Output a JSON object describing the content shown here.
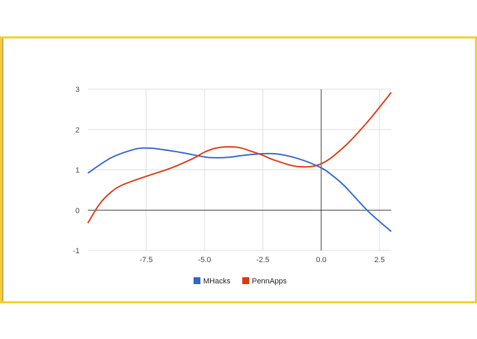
{
  "chart_data": {
    "type": "line",
    "title": "",
    "xlabel": "",
    "ylabel": "",
    "xlim": [
      -10,
      3
    ],
    "ylim": [
      -1,
      3
    ],
    "x_ticks": [
      -7.5,
      -5.0,
      -2.5,
      0.0,
      2.5
    ],
    "x_tick_labels": [
      "-7.5",
      "-5.0",
      "-2.5",
      "0.0",
      "2.5"
    ],
    "y_ticks": [
      -1,
      0,
      1,
      2,
      3
    ],
    "y_tick_labels": [
      "-1",
      "0",
      "1",
      "2",
      "3"
    ],
    "grid": true,
    "legend_position": "bottom",
    "series": [
      {
        "name": "MHacks",
        "color": "#3366cc",
        "x": [
          -10,
          -9,
          -8,
          -7.5,
          -7,
          -6,
          -5,
          -4.5,
          -4,
          -3,
          -2,
          -1,
          0,
          0.5,
          1,
          2,
          3
        ],
        "y": [
          0.92,
          1.3,
          1.51,
          1.54,
          1.52,
          1.43,
          1.32,
          1.3,
          1.31,
          1.38,
          1.4,
          1.28,
          1.05,
          0.85,
          0.6,
          -0.02,
          -0.53
        ]
      },
      {
        "name": "PennApps",
        "color": "#dc3912",
        "x": [
          -10,
          -9.5,
          -9,
          -8.5,
          -7.5,
          -6.5,
          -5.5,
          -5,
          -4.5,
          -4,
          -3.5,
          -3,
          -2.5,
          -2,
          -1,
          0,
          1,
          2,
          3
        ],
        "y": [
          -0.32,
          0.15,
          0.45,
          0.63,
          0.84,
          1.03,
          1.28,
          1.44,
          1.54,
          1.57,
          1.55,
          1.46,
          1.36,
          1.24,
          1.08,
          1.15,
          1.58,
          2.2,
          2.92
        ]
      }
    ]
  }
}
